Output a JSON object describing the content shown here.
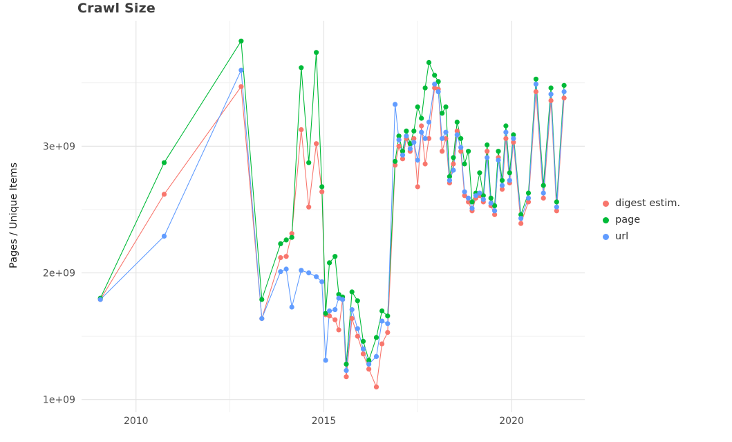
{
  "title": "Crawl Size",
  "chart_data": {
    "type": "line",
    "title": "Crawl Size",
    "xlabel": "",
    "ylabel": "Pages / Unique Items",
    "points": true,
    "grid": true,
    "legend_position": "right",
    "y_unit": "1e9",
    "xlim": [
      2008.55,
      2021.95
    ],
    "ylim": [
      0.9,
      3.99
    ],
    "x_ticks": [
      2010,
      2015,
      2020
    ],
    "x_tick_labels": [
      "2010",
      "2015",
      "2020"
    ],
    "x_minor_ticks": [
      2012.5,
      2017.5
    ],
    "y_ticks": [
      1,
      2,
      3
    ],
    "y_tick_labels": [
      "1e+09",
      "2e+09",
      "3e+09"
    ],
    "y_minor_ticks": [
      1.5,
      2.5,
      3.5
    ],
    "grid_major_color": "#e4e4e4",
    "grid_minor_color": "#f1f1f1",
    "x": [
      2009.05,
      2010.75,
      2012.8,
      2013.35,
      2013.85,
      2014.0,
      2014.15,
      2014.4,
      2014.6,
      2014.8,
      2014.95,
      2015.05,
      2015.15,
      2015.3,
      2015.4,
      2015.5,
      2015.6,
      2015.75,
      2015.9,
      2016.05,
      2016.2,
      2016.4,
      2016.55,
      2016.7,
      2016.9,
      2017.0,
      2017.1,
      2017.2,
      2017.3,
      2017.4,
      2017.5,
      2017.6,
      2017.7,
      2017.8,
      2017.95,
      2018.05,
      2018.15,
      2018.25,
      2018.35,
      2018.45,
      2018.55,
      2018.65,
      2018.75,
      2018.85,
      2018.95,
      2019.05,
      2019.15,
      2019.25,
      2019.35,
      2019.45,
      2019.55,
      2019.65,
      2019.75,
      2019.85,
      2019.95,
      2020.05,
      2020.25,
      2020.45,
      2020.65,
      2020.85,
      2021.05,
      2021.2,
      2021.4
    ],
    "series": [
      {
        "name": "digest estim.",
        "key": "digest-estim",
        "color": "#F8766D",
        "values": [
          1.79,
          2.62,
          3.47,
          1.64,
          2.12,
          2.13,
          2.31,
          3.13,
          2.52,
          3.02,
          2.64,
          1.67,
          1.66,
          1.63,
          1.55,
          1.79,
          1.18,
          1.64,
          1.5,
          1.36,
          1.24,
          1.1,
          1.44,
          1.53,
          2.85,
          3.0,
          2.9,
          3.06,
          2.96,
          3.06,
          2.68,
          3.16,
          2.86,
          3.06,
          3.46,
          3.45,
          2.96,
          3.06,
          2.71,
          2.86,
          3.12,
          2.96,
          2.61,
          2.56,
          2.49,
          2.59,
          2.61,
          2.56,
          2.96,
          2.53,
          2.46,
          2.91,
          2.66,
          3.06,
          2.71,
          3.03,
          2.39,
          2.56,
          3.43,
          2.59,
          3.36,
          2.49,
          3.38
        ]
      },
      {
        "name": "page",
        "key": "page",
        "color": "#00BA38",
        "values": [
          1.8,
          2.87,
          3.83,
          1.79,
          2.23,
          2.26,
          2.28,
          3.62,
          2.87,
          3.74,
          2.68,
          1.68,
          2.08,
          2.13,
          1.83,
          1.81,
          1.28,
          1.85,
          1.78,
          1.46,
          1.31,
          1.49,
          1.7,
          1.66,
          2.88,
          3.08,
          2.96,
          3.12,
          3.02,
          3.12,
          3.31,
          3.22,
          3.46,
          3.66,
          3.56,
          3.51,
          3.26,
          3.31,
          2.76,
          2.91,
          3.19,
          3.06,
          2.86,
          2.96,
          2.56,
          2.63,
          2.79,
          2.61,
          3.01,
          2.59,
          2.53,
          2.96,
          2.73,
          3.16,
          2.79,
          3.09,
          2.46,
          2.63,
          3.53,
          2.69,
          3.46,
          2.56,
          3.48
        ]
      },
      {
        "name": "url",
        "key": "url",
        "color": "#619CFF",
        "values": [
          1.79,
          2.29,
          3.6,
          1.64,
          2.01,
          2.03,
          1.73,
          2.02,
          2.0,
          1.97,
          1.93,
          1.31,
          1.7,
          1.71,
          1.8,
          1.79,
          1.23,
          1.71,
          1.56,
          1.4,
          1.28,
          1.34,
          1.62,
          1.6,
          3.33,
          3.05,
          2.93,
          3.08,
          2.98,
          3.03,
          2.89,
          3.11,
          3.06,
          3.19,
          3.49,
          3.43,
          3.06,
          3.11,
          2.73,
          2.81,
          3.09,
          2.99,
          2.64,
          2.59,
          2.51,
          2.61,
          2.63,
          2.58,
          2.91,
          2.55,
          2.49,
          2.89,
          2.69,
          3.11,
          2.73,
          3.06,
          2.43,
          2.59,
          3.49,
          2.63,
          3.41,
          2.52,
          3.43
        ]
      }
    ]
  }
}
